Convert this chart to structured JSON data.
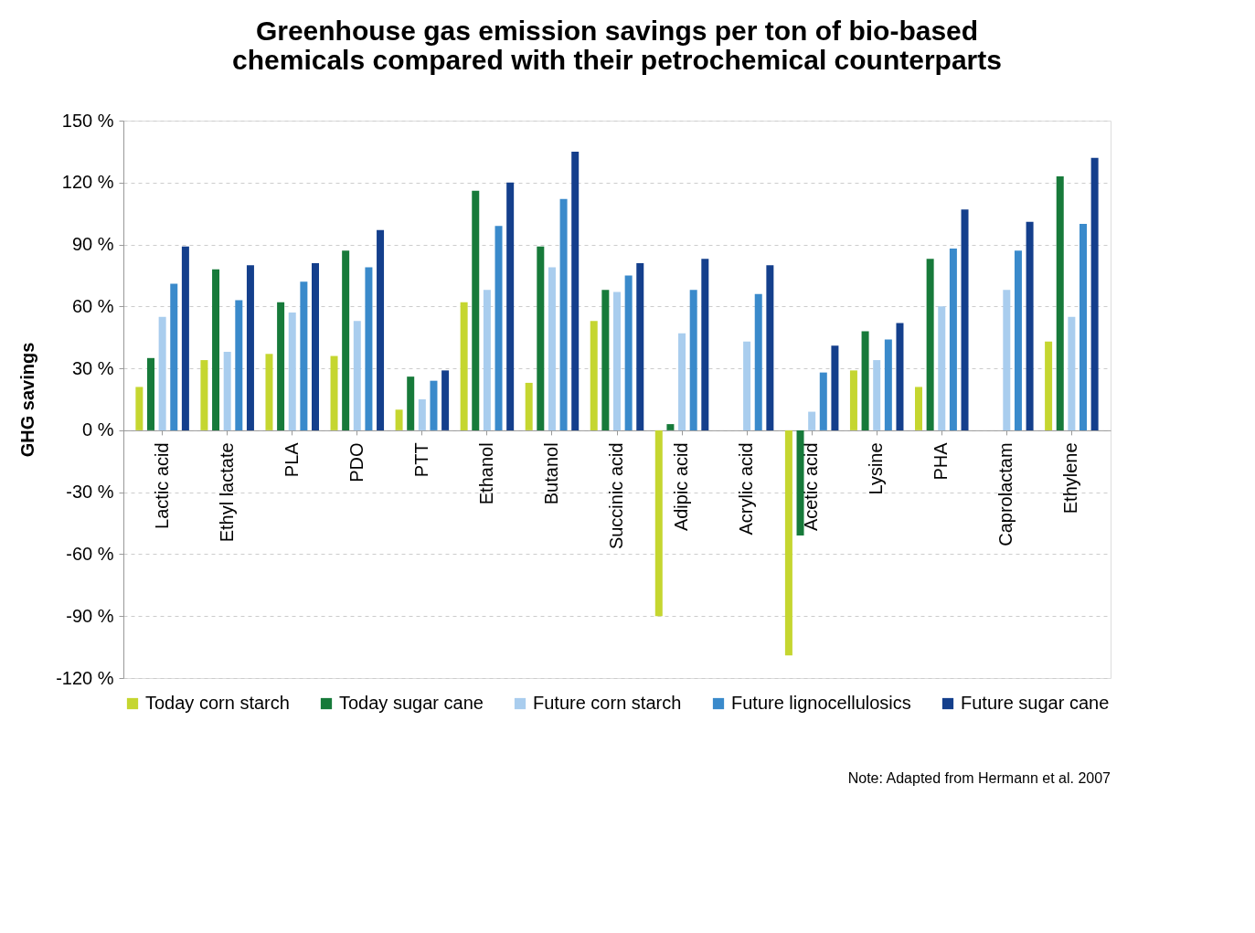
{
  "chart_data": {
    "type": "bar",
    "title": [
      "Greenhouse gas emission savings per ton of bio-based",
      "chemicals compared with their petrochemical counterparts"
    ],
    "ylabel": "GHG savings",
    "categories": [
      "Lactic acid",
      "Ethyl lactate",
      "PLA",
      "PDO",
      "PTT",
      "Ethanol",
      "Butanol",
      "Succinic acid",
      "Adipic acid",
      "Acrylic acid",
      "Acetic acid",
      "Lysine",
      "PHA",
      "Caprolactam",
      "Ethylene"
    ],
    "series": [
      {
        "name": "Today corn starch",
        "color": "#c5d630",
        "values": [
          21,
          34,
          37,
          36,
          10,
          62,
          23,
          53,
          -90,
          null,
          -109,
          29,
          21,
          null,
          43
        ]
      },
      {
        "name": "Today sugar cane",
        "color": "#177a3a",
        "values": [
          35,
          78,
          62,
          87,
          26,
          116,
          89,
          68,
          3,
          null,
          -51,
          48,
          83,
          null,
          123
        ]
      },
      {
        "name": "Future corn starch",
        "color": "#a9cdee",
        "values": [
          55,
          38,
          57,
          53,
          15,
          68,
          79,
          67,
          47,
          43,
          9,
          34,
          60,
          68,
          55
        ]
      },
      {
        "name": "Future lignocellulosics",
        "color": "#3a8acb",
        "values": [
          71,
          63,
          72,
          79,
          24,
          99,
          112,
          75,
          68,
          66,
          28,
          44,
          88,
          87,
          100
        ]
      },
      {
        "name": "Future sugar cane",
        "color": "#143f8c",
        "values": [
          89,
          80,
          81,
          97,
          29,
          120,
          135,
          81,
          83,
          80,
          41,
          52,
          107,
          101,
          132
        ]
      }
    ],
    "ylim": [
      -120,
      150
    ],
    "yticks": [
      {
        "value": -120,
        "label": "-120 %"
      },
      {
        "value": -90,
        "label": "-90 %"
      },
      {
        "value": -60,
        "label": "-60 %"
      },
      {
        "value": -30,
        "label": "-30 %"
      },
      {
        "value": 0,
        "label": "0 %"
      },
      {
        "value": 30,
        "label": "30 %"
      },
      {
        "value": 60,
        "label": "60 %"
      },
      {
        "value": 90,
        "label": "90 %"
      },
      {
        "value": 120,
        "label": "120 %"
      },
      {
        "value": 150,
        "label": "150 %"
      }
    ],
    "grid": "y",
    "legend": "bottom",
    "annotations": [
      "Note: Adapted from Hermann et al. 2007"
    ]
  }
}
